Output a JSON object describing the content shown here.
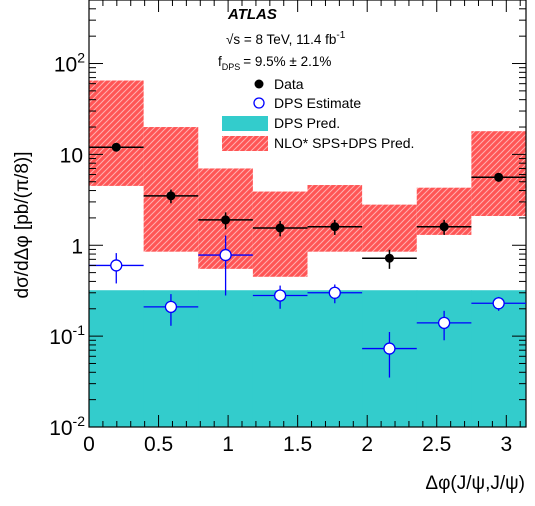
{
  "chart_data": {
    "type": "scatter",
    "experiment": "ATLAS",
    "energy_text": "√s = 8 TeV, 11.4 fb",
    "energy_exp": "-1",
    "fdps_text": "f",
    "fdps_sub": "DPS",
    "fdps_value": "= 9.5% ± 2.1%",
    "xlabel": "Δφ(J/ψ,J/ψ)",
    "ylabel": "dσ/dΔφ [pb/(π/8)]",
    "yscale": "log",
    "xlim": [
      0,
      3.1416
    ],
    "ylim": [
      0.01,
      500
    ],
    "x_ticks": [
      {
        "value": 0,
        "label": "0"
      },
      {
        "value": 0.5,
        "label": "0.5"
      },
      {
        "value": 1,
        "label": "1"
      },
      {
        "value": 1.5,
        "label": "1.5"
      },
      {
        "value": 2,
        "label": "2"
      },
      {
        "value": 2.5,
        "label": "2.5"
      },
      {
        "value": 3,
        "label": "3"
      }
    ],
    "y_ticks": [
      {
        "value": 0.01,
        "base": "10",
        "exp": "-2"
      },
      {
        "value": 0.1,
        "base": "10",
        "exp": "-1"
      },
      {
        "value": 1,
        "base": "1",
        "exp": ""
      },
      {
        "value": 10,
        "base": "10",
        "exp": ""
      },
      {
        "value": 100,
        "base": "10",
        "exp": "2"
      }
    ],
    "bins": [
      [
        0,
        0.3927
      ],
      [
        0.3927,
        0.7854
      ],
      [
        0.7854,
        1.1781
      ],
      [
        1.1781,
        1.5708
      ],
      [
        1.5708,
        1.9635
      ],
      [
        1.9635,
        2.3562
      ],
      [
        2.3562,
        2.7489
      ],
      [
        2.7489,
        3.1416
      ]
    ],
    "series": [
      {
        "name": "Data",
        "marker": "filled-circle",
        "color": "#000000",
        "x": [
          0.196,
          0.589,
          0.982,
          1.374,
          1.767,
          2.16,
          2.553,
          2.945
        ],
        "y": [
          12.0,
          3.5,
          1.9,
          1.55,
          1.6,
          0.72,
          1.6,
          5.6
        ],
        "yerr_low": [
          1.2,
          0.6,
          0.4,
          0.3,
          0.3,
          0.17,
          0.3,
          0.6
        ],
        "yerr_high": [
          1.2,
          0.6,
          0.4,
          0.3,
          0.3,
          0.17,
          0.3,
          0.6
        ]
      },
      {
        "name": "DPS Estimate",
        "marker": "open-circle",
        "color": "#0000ff",
        "x": [
          0.196,
          0.589,
          0.982,
          1.374,
          1.767,
          2.16,
          2.553,
          2.945
        ],
        "y": [
          0.6,
          0.21,
          0.78,
          0.28,
          0.3,
          0.073,
          0.14,
          0.23
        ],
        "yerr_low": [
          0.22,
          0.08,
          0.5,
          0.08,
          0.07,
          0.038,
          0.05,
          0.04
        ],
        "yerr_high": [
          0.22,
          0.08,
          0.5,
          0.08,
          0.07,
          0.038,
          0.05,
          0.04
        ]
      },
      {
        "name": "DPS Pred.",
        "style": "filled-area",
        "color": "#33cccc",
        "y": [
          0.32,
          0.32,
          0.32,
          0.32,
          0.32,
          0.32,
          0.32,
          0.32
        ]
      },
      {
        "name": "NLO* SPS+DPS Pred.",
        "style": "error-box",
        "color": "#ff4444",
        "y": [
          12.0,
          3.7,
          1.9,
          1.5,
          1.5,
          0.9,
          1.6,
          5.5
        ],
        "y_low": [
          4.5,
          0.85,
          0.55,
          0.45,
          0.85,
          0.85,
          1.3,
          2.1
        ],
        "y_high": [
          65,
          20,
          7.0,
          3.9,
          4.6,
          2.8,
          4.3,
          18
        ]
      }
    ],
    "legend_position": "top-right",
    "grid": false
  }
}
